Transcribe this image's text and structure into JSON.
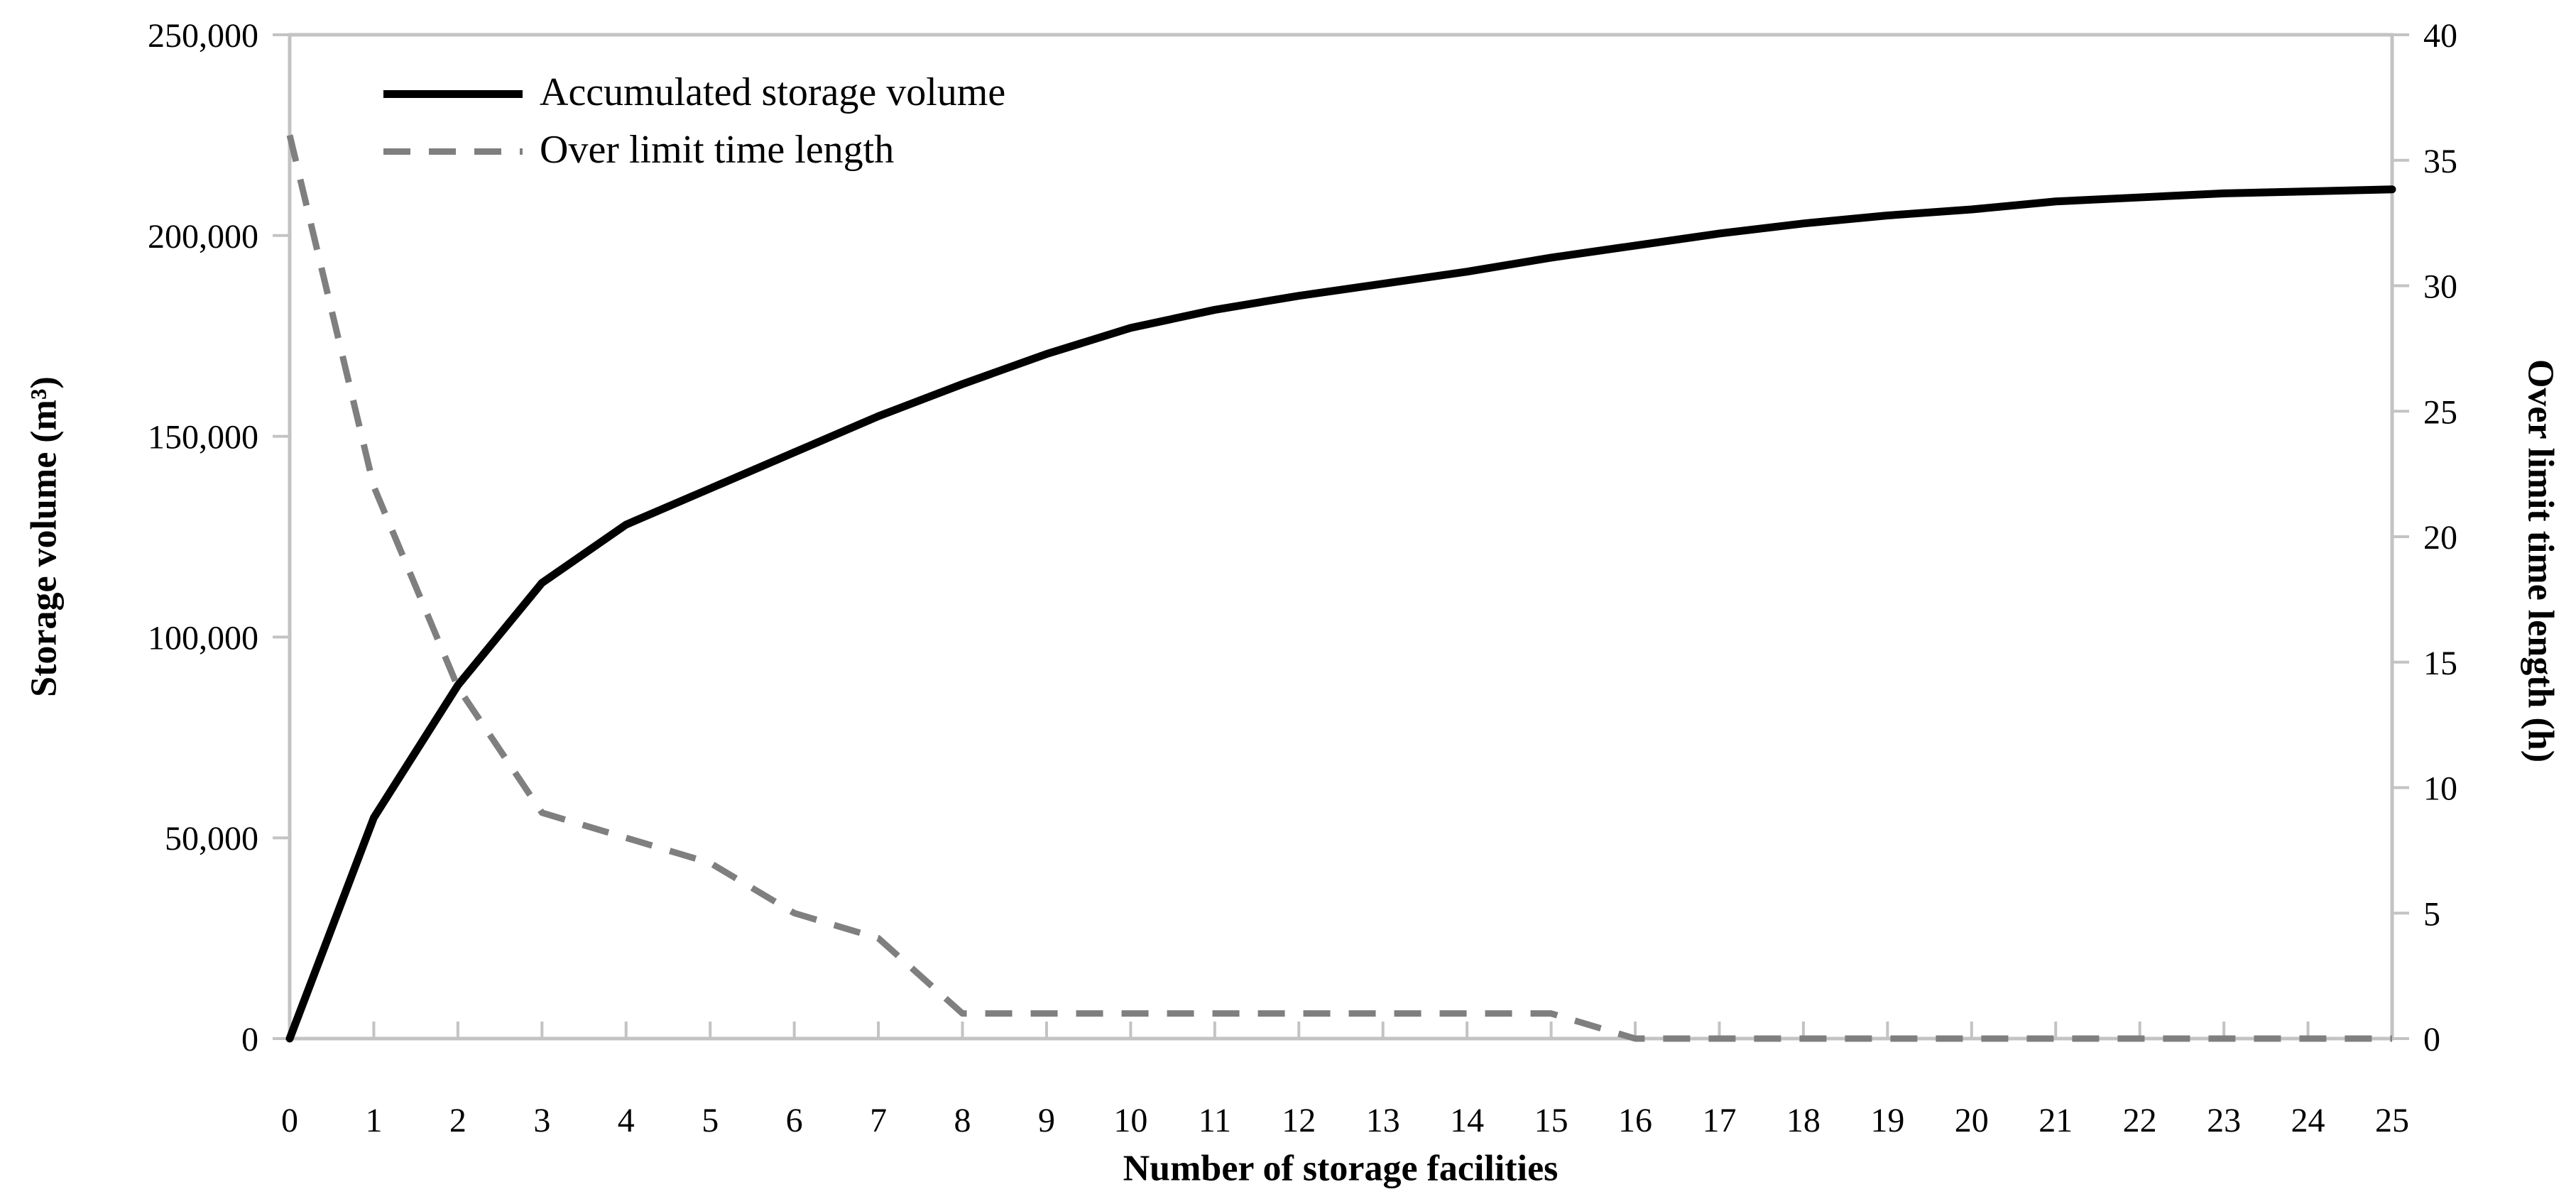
{
  "figure": {
    "background": "#ffffff",
    "axis_line_color": "#c3c3c3",
    "text_color": "#000000"
  },
  "chart_data": {
    "type": "line",
    "title": "",
    "xlabel": "Number of storage facilities",
    "ylabel_left": "Storage volume (m³)",
    "ylabel_right": "Over limit time length (h)",
    "x": [
      0,
      1,
      2,
      3,
      4,
      5,
      6,
      7,
      8,
      9,
      10,
      11,
      12,
      13,
      14,
      15,
      16,
      17,
      18,
      19,
      20,
      21,
      22,
      23,
      24,
      25
    ],
    "x_tick_labels": [
      "0",
      "1",
      "2",
      "3",
      "4",
      "5",
      "6",
      "7",
      "8",
      "9",
      "10",
      "11",
      "12",
      "13",
      "14",
      "15",
      "16",
      "17",
      "18",
      "19",
      "20",
      "21",
      "22",
      "23",
      "24",
      "25"
    ],
    "series": [
      {
        "name": "Accumulated storage volume",
        "axis": "left",
        "style": "solid",
        "color": "#000000",
        "values": [
          0,
          55000,
          88000,
          113500,
          128000,
          137000,
          146000,
          155000,
          163000,
          170500,
          177000,
          181500,
          185000,
          188000,
          191000,
          194500,
          197500,
          200500,
          203000,
          205000,
          206500,
          208500,
          209500,
          210500,
          211000,
          211500
        ]
      },
      {
        "name": "Over limit time length",
        "axis": "right",
        "style": "dashed",
        "color": "#7f7f7f",
        "values": [
          36,
          22,
          14,
          9,
          8,
          7,
          5,
          4,
          1,
          1,
          1,
          1,
          1,
          1,
          1,
          1,
          0,
          0,
          0,
          0,
          0,
          0,
          0,
          0,
          0,
          0
        ]
      }
    ],
    "left_axis": {
      "min": 0,
      "max": 250000,
      "tick_step": 50000,
      "tick_labels": [
        "0",
        "50,000",
        "100,000",
        "150,000",
        "200,000",
        "250,000"
      ]
    },
    "right_axis": {
      "min": 0,
      "max": 40,
      "tick_step": 5,
      "tick_labels": [
        "0",
        "5",
        "10",
        "15",
        "20",
        "25",
        "30",
        "35",
        "40"
      ]
    },
    "xlim": [
      0,
      25
    ],
    "grid": false,
    "legend_position": "top-left-inside"
  }
}
